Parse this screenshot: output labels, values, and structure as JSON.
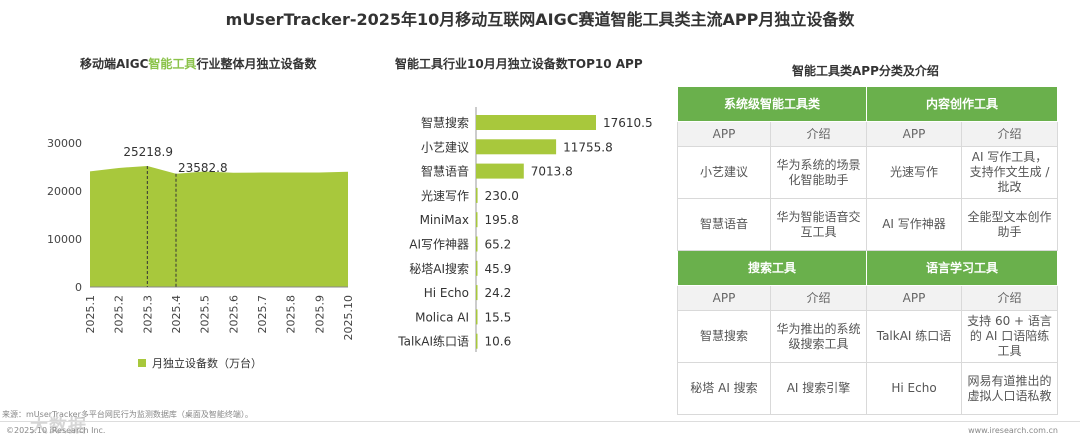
{
  "title": "mUserTracker-2025年10月移动互联网AIGC赛道智能工具类主流APP月独立设备数",
  "left_chart": {
    "title_pre": "移动端AIGC",
    "title_hl": "智能工具",
    "title_post": "行业整体月独立设备数",
    "legend": "月独立设备数（万台）"
  },
  "mid_chart": {
    "title": "智能工具行业10月月独立设备数TOP10 APP"
  },
  "right_table": {
    "title": "智能工具类APP分类及介绍",
    "col_app": "APP",
    "col_intro": "介绍",
    "sections": [
      {
        "left_header": "系统级智能工具类",
        "right_header": "内容创作工具",
        "rows": [
          [
            "小艺建议",
            "华为系统的场景化智能助手",
            "光速写作",
            "AI 写作工具，支持作文生成 / 批改"
          ],
          [
            "智慧语音",
            "华为智能语音交互工具",
            "AI 写作神器",
            "全能型文本创作助手"
          ]
        ]
      },
      {
        "left_header": "搜索工具",
        "right_header": "语言学习工具",
        "rows": [
          [
            "智慧搜索",
            "华为推出的系统级搜索工具",
            "TalkAI 练口语",
            "支持 60 + 语言的 AI 口语陪练工具"
          ],
          [
            "秘塔 AI 搜索",
            "AI 搜索引擎",
            "Hi Echo",
            "网易有道推出的虚拟人口语私教"
          ]
        ]
      }
    ]
  },
  "footer": {
    "source": "来源：mUserTracker多平台网民行为监测数据库（桌面及智能终端）。",
    "copyright": "©2025.10 iResearch Inc.",
    "url": "www.iresearch.com.cn",
    "watermark": "大数据"
  },
  "colors": {
    "bar": "#a8c83c",
    "area": "#a8c83c",
    "header_green": "#6ab04c"
  },
  "chart_data": [
    {
      "type": "area",
      "x": [
        "2025.1",
        "2025.2",
        "2025.3",
        "2025.4",
        "2025.5",
        "2025.6",
        "2025.7",
        "2025.8",
        "2025.9",
        "2025.10"
      ],
      "values": [
        24100,
        24800,
        25218.9,
        23582.8,
        24050,
        23800,
        23850,
        23850,
        23850,
        24000
      ],
      "annotations": [
        {
          "x": "2025.3",
          "label": "25218.9"
        },
        {
          "x": "2025.4",
          "label": "23582.8"
        }
      ],
      "ylim": [
        0,
        30000
      ],
      "yticks": [
        "0",
        "10000",
        "20000",
        "30000"
      ],
      "legend": [
        "月独立设备数（万台）"
      ]
    },
    {
      "type": "bar",
      "orientation": "horizontal",
      "categories": [
        "智慧搜索",
        "小艺建议",
        "智慧语音",
        "光速写作",
        "MiniMax",
        "AI写作神器",
        "秘塔AI搜索",
        "Hi Echo",
        "Molica AI",
        "TalkAI练口语"
      ],
      "values": [
        17610.5,
        11755.8,
        7013.8,
        230.0,
        195.8,
        65.2,
        45.9,
        24.2,
        15.5,
        10.6
      ],
      "labels": [
        "17610.5",
        "11755.8",
        "7013.8",
        "230.0",
        "195.8",
        "65.2",
        "45.9",
        "24.2",
        "15.5",
        "10.6"
      ]
    }
  ]
}
